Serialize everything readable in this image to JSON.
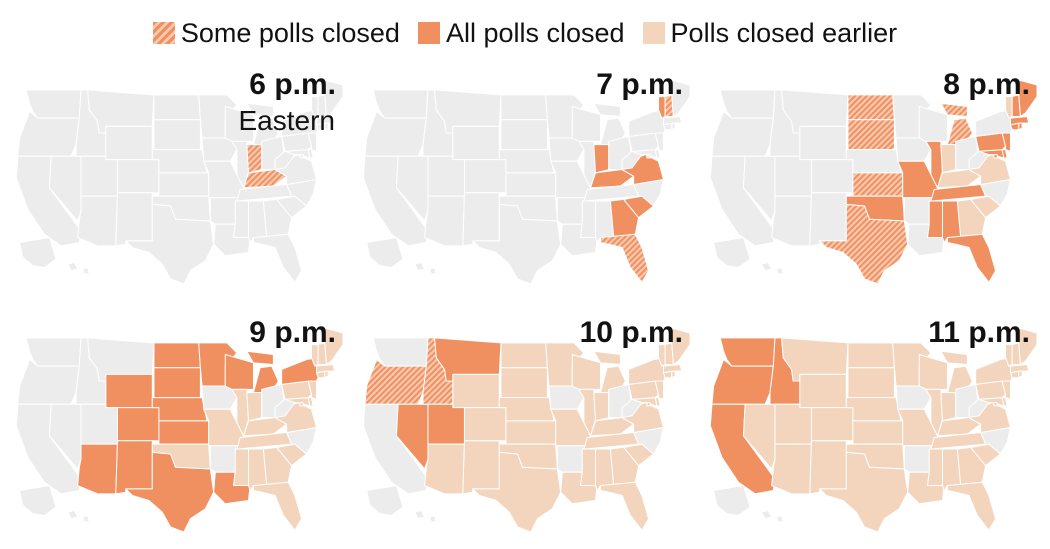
{
  "legend": {
    "items": [
      {
        "label": "Some polls closed",
        "status": "some"
      },
      {
        "label": "All polls closed",
        "status": "all"
      },
      {
        "label": "Polls closed earlier",
        "status": "earlier"
      }
    ]
  },
  "colors": {
    "none": "#ececec",
    "all": "#f09060",
    "some_base": "#f8c9ae",
    "earlier": "#f3d5bd",
    "border": "#ffffff"
  },
  "panels": [
    {
      "time": "6 p.m.",
      "sub": "Eastern",
      "some": [
        "IN",
        "KY"
      ],
      "all": []
    },
    {
      "time": "7 p.m.",
      "sub": "",
      "some": [
        "FL",
        "NH"
      ],
      "all": [
        "GA",
        "IN",
        "KY",
        "SC",
        "VA",
        "VT"
      ]
    },
    {
      "time": "8 p.m.",
      "sub": "",
      "some": [
        "KS",
        "MI",
        "ND",
        "SD",
        "TX"
      ],
      "all": [
        "AL",
        "CT",
        "DC",
        "DE",
        "FL",
        "IL",
        "MA",
        "MD",
        "ME",
        "MO",
        "MS",
        "NH",
        "NJ",
        "OK",
        "PA",
        "RI",
        "TN"
      ]
    },
    {
      "time": "9 p.m.",
      "sub": "",
      "some": [],
      "all": [
        "AZ",
        "CO",
        "KS",
        "LA",
        "MI",
        "MN",
        "ND",
        "NE",
        "NM",
        "NY",
        "SD",
        "TX",
        "WI",
        "WY"
      ]
    },
    {
      "time": "10 p.m.",
      "sub": "",
      "some": [
        "ID",
        "OR"
      ],
      "all": [
        "MT",
        "NV",
        "UT"
      ]
    },
    {
      "time": "11 p.m.",
      "sub": "",
      "some": [],
      "all": [
        "CA",
        "ID",
        "OR",
        "WA"
      ]
    }
  ]
}
